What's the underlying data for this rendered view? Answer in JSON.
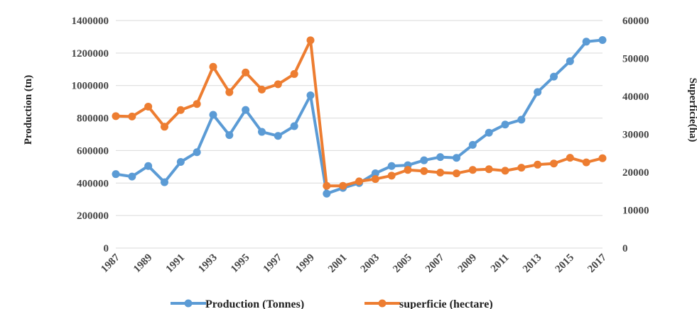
{
  "chart_data": {
    "type": "line",
    "x": [
      1987,
      1988,
      1989,
      1990,
      1991,
      1992,
      1993,
      1994,
      1995,
      1996,
      1997,
      1998,
      1999,
      2000,
      2001,
      2002,
      2003,
      2004,
      2005,
      2006,
      2007,
      2008,
      2009,
      2010,
      2011,
      2012,
      2013,
      2014,
      2015,
      2016,
      2017
    ],
    "x_tick_labels": [
      "1987",
      "1989",
      "1991",
      "1993",
      "1995",
      "1997",
      "1999",
      "2001",
      "2003",
      "2005",
      "2007",
      "2009",
      "2011",
      "2013",
      "2015",
      "2017"
    ],
    "ylabel": "Production (tn)",
    "y2label": "Superficie(ha)",
    "ylim": [
      0,
      1400000
    ],
    "y2lim": [
      0,
      60000
    ],
    "y_ticks": [
      "0",
      "200000",
      "400000",
      "600000",
      "800000",
      "1000000",
      "1200000",
      "1400000"
    ],
    "y2_ticks": [
      "0",
      "10000",
      "20000",
      "30000",
      "40000",
      "50000",
      "60000"
    ],
    "grid": true,
    "legend_position": "bottom",
    "series": [
      {
        "name": "Production (Tonnes)",
        "axis": "left",
        "color": "#5B9BD5",
        "values": [
          455000,
          440000,
          505000,
          405000,
          530000,
          590000,
          820000,
          695000,
          850000,
          715000,
          690000,
          750000,
          940000,
          335000,
          370000,
          400000,
          460000,
          505000,
          510000,
          540000,
          560000,
          555000,
          635000,
          710000,
          760000,
          790000,
          960000,
          1055000,
          1150000,
          1270000,
          1280000
        ]
      },
      {
        "name": "superficie (hectare)",
        "axis": "right",
        "color": "#ED7D31",
        "values": [
          34800,
          34700,
          37300,
          32000,
          36400,
          38000,
          47800,
          41100,
          46300,
          41800,
          43200,
          45900,
          54800,
          16400,
          16400,
          17600,
          18200,
          19100,
          20600,
          20300,
          19900,
          19700,
          20600,
          20800,
          20400,
          21200,
          22000,
          22300,
          23800,
          22600,
          23700
        ]
      }
    ]
  }
}
